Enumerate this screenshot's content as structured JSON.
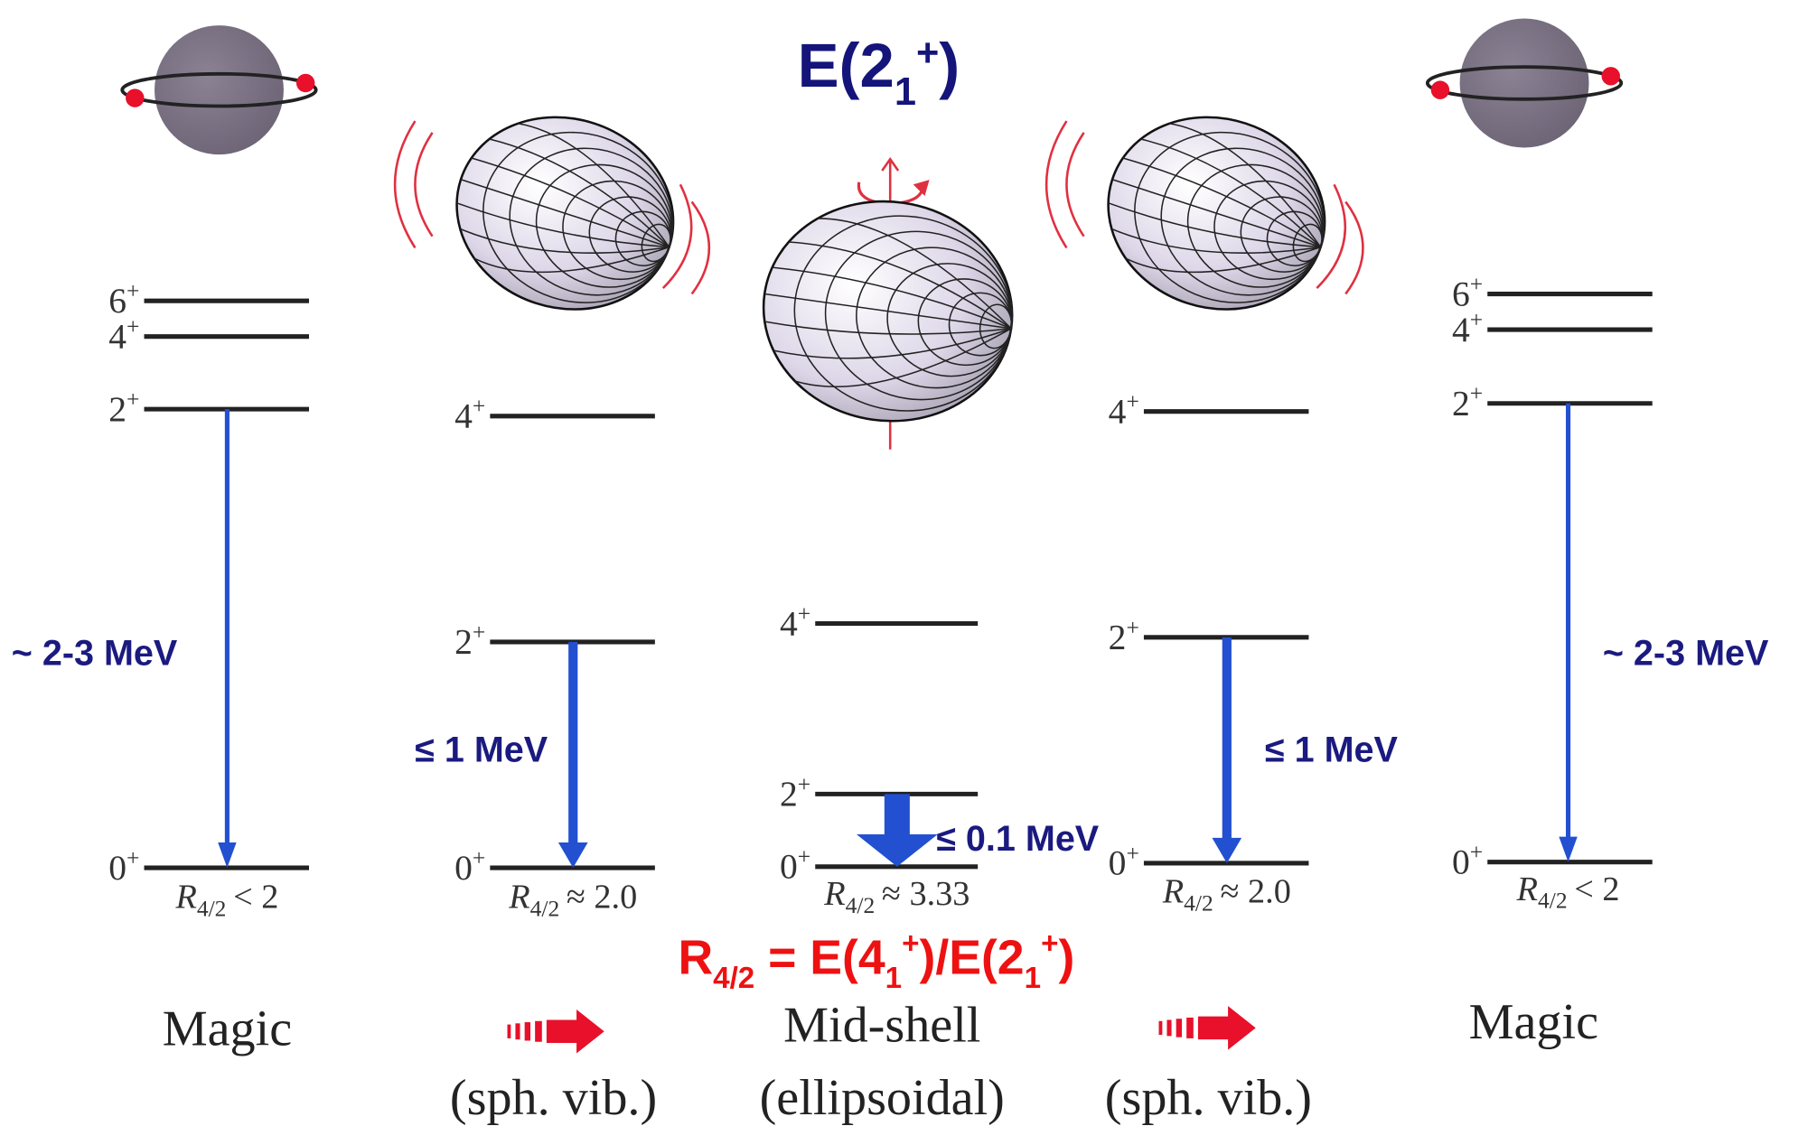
{
  "title": {
    "text": "E(2",
    "sub": "1",
    "sup": "+",
    "close": ")"
  },
  "columns": [
    {
      "levels": [
        {
          "spin": "6",
          "parity": "+"
        },
        {
          "spin": "4",
          "parity": "+"
        },
        {
          "spin": "2",
          "parity": "+"
        },
        {
          "spin": "0",
          "parity": "+"
        }
      ],
      "transition": "~ 2-3 MeV",
      "ratio": {
        "symbol": "R",
        "sub": "4/2",
        "relation": "< 2"
      },
      "label": "Magic"
    },
    {
      "levels": [
        {
          "spin": "4",
          "parity": "+"
        },
        {
          "spin": "2",
          "parity": "+"
        },
        {
          "spin": "0",
          "parity": "+"
        }
      ],
      "transition": "≤ 1 MeV",
      "ratio": {
        "symbol": "R",
        "sub": "4/2",
        "relation": "≈ 2.0"
      },
      "sublabel": "(sph. vib.)"
    },
    {
      "levels": [
        {
          "spin": "4",
          "parity": "+"
        },
        {
          "spin": "2",
          "parity": "+"
        },
        {
          "spin": "0",
          "parity": "+"
        }
      ],
      "transition": "≤ 0.1 MeV",
      "ratio": {
        "symbol": "R",
        "sub": "4/2",
        "relation": "≈ 3.33"
      },
      "label": "Mid-shell",
      "sublabel": "(ellipsoidal)"
    },
    {
      "levels": [
        {
          "spin": "4",
          "parity": "+"
        },
        {
          "spin": "2",
          "parity": "+"
        },
        {
          "spin": "0",
          "parity": "+"
        }
      ],
      "transition": "≤ 1 MeV",
      "ratio": {
        "symbol": "R",
        "sub": "4/2",
        "relation": "≈ 2.0"
      },
      "sublabel": "(sph. vib.)"
    },
    {
      "levels": [
        {
          "spin": "6",
          "parity": "+"
        },
        {
          "spin": "4",
          "parity": "+"
        },
        {
          "spin": "2",
          "parity": "+"
        },
        {
          "spin": "0",
          "parity": "+"
        }
      ],
      "transition": "~ 2-3 MeV",
      "ratio": {
        "symbol": "R",
        "sub": "4/2",
        "relation": "< 2"
      },
      "label": "Magic"
    }
  ],
  "formula": {
    "symbol": "R",
    "sub": "4/2",
    "eq": " = E(4",
    "sub1": "1",
    "sup1": "+",
    "mid": ")/E(2",
    "sub2": "1",
    "sup2": "+",
    "close": ")"
  }
}
